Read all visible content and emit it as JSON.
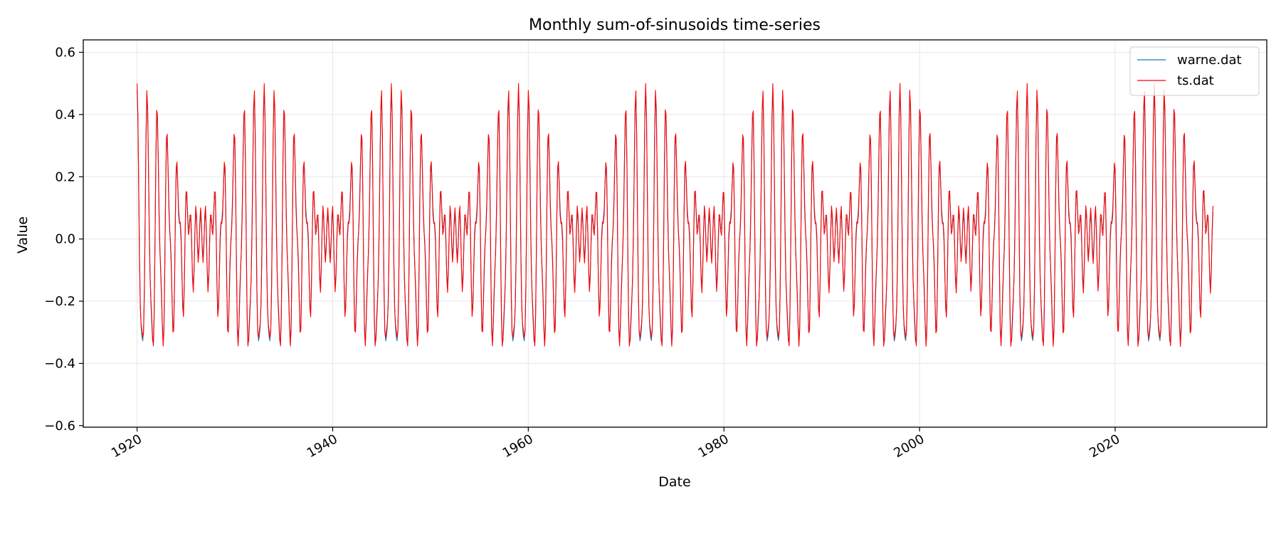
{
  "chart_data": {
    "type": "line",
    "title": "Monthly sum-of-sinusoids time-series",
    "xlabel": "Date",
    "ylabel": "Value",
    "x_range": [
      "1920-01",
      "2030-01"
    ],
    "xlim": [
      "1914-07",
      "2035-07"
    ],
    "ylim": [
      -0.605,
      0.64
    ],
    "x_ticks": [
      "1920",
      "1940",
      "1960",
      "1980",
      "2000",
      "2020"
    ],
    "y_ticks": [
      "0.6",
      "0.4",
      "0.2",
      "0.0",
      "−0.2",
      "−0.4",
      "−0.6"
    ],
    "grid": true,
    "legend_position": "top-right",
    "series": [
      {
        "name": "warne.dat",
        "color": "#1f77b4",
        "sampling": "monthly",
        "components": [
          {
            "amplitude": 0.2,
            "period_years": 1.0
          },
          {
            "amplitude": 0.2,
            "period_years": 1.0833
          },
          {
            "amplitude": 0.08,
            "period_years": 0.5
          }
        ]
      },
      {
        "name": "ts.dat",
        "color": "#ff0000",
        "sampling": "monthly",
        "components": [
          {
            "amplitude": 0.2,
            "period_years": 1.0
          },
          {
            "amplitude": 0.2,
            "period_years": 1.0833
          },
          {
            "amplitude": 0.1,
            "period_years": 0.5
          }
        ]
      }
    ]
  }
}
